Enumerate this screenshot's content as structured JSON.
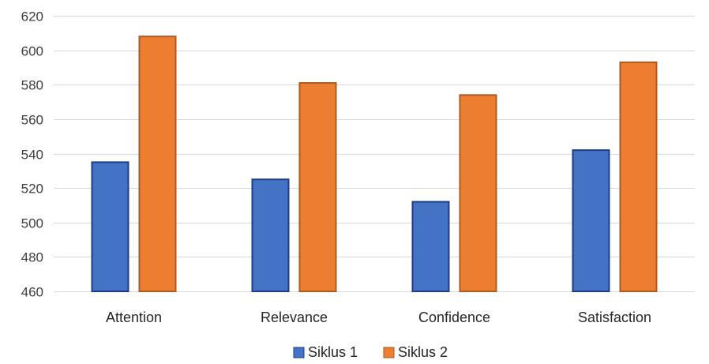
{
  "chart_data": {
    "type": "bar",
    "categories": [
      "Attention",
      "Relevance",
      "Confidence",
      "Satisfaction"
    ],
    "series": [
      {
        "name": "Siklus 1",
        "values": [
          535,
          525,
          512,
          542
        ]
      },
      {
        "name": "Siklus 2",
        "values": [
          608,
          581,
          574,
          593
        ]
      }
    ],
    "ylim": [
      460,
      620
    ],
    "yticks": [
      460,
      480,
      500,
      520,
      540,
      560,
      580,
      600,
      620
    ],
    "grid": true,
    "legend_position": "bottom"
  },
  "colors": {
    "series": [
      "#4472c4",
      "#ed7d31"
    ],
    "series_border": [
      "#1f3c88",
      "#ae5a21"
    ]
  }
}
